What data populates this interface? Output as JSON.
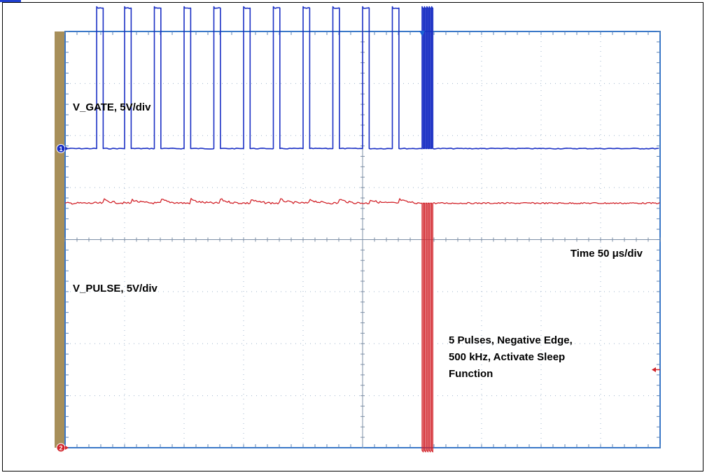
{
  "chart_data": {
    "type": "line",
    "title": "",
    "annotations": {
      "ch1_label": "V_GATE, 5V/div",
      "ch2_label": "V_PULSE, 5V/div",
      "timebase": "Time 50 μs/div",
      "note_lines": [
        "5 Pulses, Negative Edge,",
        "500 kHz, Activate Sleep",
        "Function"
      ]
    },
    "grid": true,
    "divisions": {
      "x": 10,
      "y": 8
    },
    "xlim": [
      0,
      10
    ],
    "ylim": [
      0,
      8
    ],
    "markers": {
      "ch1": "1",
      "ch2": "2"
    },
    "series": [
      {
        "channel": "1",
        "color": "#1a2fc4",
        "baseline_div": 5.75,
        "high_div": 8.45,
        "pulse_starts_div": [
          0.53,
          1.0,
          1.5,
          2.0,
          2.5,
          3.0,
          3.5,
          4.0,
          4.5,
          5.0,
          5.5
        ],
        "pulse_width_div": 0.11,
        "burst_starts_div": [
          6.0,
          6.04,
          6.08,
          6.12,
          6.16
        ],
        "burst_width_div": 0.02
      },
      {
        "channel": "2",
        "color": "#d2232a",
        "baseline_div": 4.7,
        "ground_div": 0.0,
        "burst_starts_div": [
          6.0,
          6.04,
          6.08,
          6.12,
          6.16
        ],
        "burst_width_div": 0.02
      }
    ],
    "trigger_position_div": 6.0
  },
  "colors": {
    "plot_background": "#ffffff",
    "left_bar": "#a78f5a",
    "grid_border": "#3a78c8",
    "ch1": "#1a2fc4",
    "ch2": "#d2232a"
  }
}
